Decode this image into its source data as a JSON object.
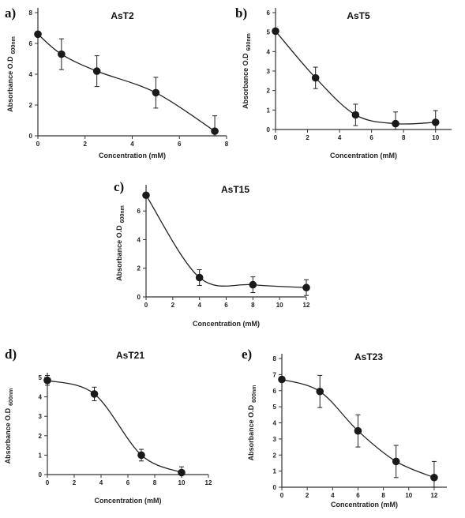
{
  "chart_data": [
    {
      "type": "line",
      "panel_label": "a)",
      "title": "AsT2",
      "xlabel": "Concentration (mM)",
      "ylabel": "Absorbance O.D",
      "ylabel_sub": "600nm",
      "xlim": [
        0,
        8
      ],
      "ylim": [
        0,
        8
      ],
      "xticks": [
        0,
        2,
        4,
        6,
        8
      ],
      "yticks": [
        0,
        2,
        4,
        6,
        8
      ],
      "grid": false,
      "series": [
        {
          "x": [
            0,
            1,
            2.5,
            5,
            7.5
          ],
          "y": [
            6.6,
            5.3,
            4.2,
            2.8,
            0.3
          ],
          "err": [
            0,
            1.0,
            1.0,
            1.0,
            1.0
          ]
        }
      ]
    },
    {
      "type": "line",
      "panel_label": "b)",
      "title": "AsT5",
      "xlabel": "Concentration (mM)",
      "ylabel": "Absorbance O.D",
      "ylabel_sub": "600nm",
      "xlim": [
        0,
        11
      ],
      "ylim": [
        0,
        6
      ],
      "xticks": [
        0,
        2,
        4,
        6,
        8,
        10
      ],
      "yticks": [
        0,
        1,
        2,
        3,
        4,
        5,
        6
      ],
      "grid": false,
      "series": [
        {
          "x": [
            0,
            2.5,
            5,
            7.5,
            10
          ],
          "y": [
            5.05,
            2.65,
            0.75,
            0.3,
            0.37
          ],
          "err": [
            0,
            0.55,
            0.55,
            0.6,
            0.6
          ]
        }
      ]
    },
    {
      "type": "line",
      "panel_label": "c)",
      "title": "AsT15",
      "xlabel": "Concentration (mM)",
      "ylabel": "Absorbance O.D",
      "ylabel_sub": "600nm",
      "xlim": [
        0,
        12
      ],
      "ylim": [
        0,
        7.5
      ],
      "xticks": [
        0,
        2,
        4,
        6,
        8,
        10,
        12
      ],
      "yticks": [
        0,
        2,
        4,
        6
      ],
      "grid": false,
      "series": [
        {
          "x": [
            0,
            4,
            8,
            12
          ],
          "y": [
            7.1,
            1.35,
            0.85,
            0.65
          ],
          "err": [
            0,
            0.55,
            0.55,
            0.55
          ]
        }
      ]
    },
    {
      "type": "line",
      "panel_label": "d)",
      "title": "AsT21",
      "xlabel": "Concentration (mM)",
      "ylabel": "Absorbance O.D",
      "ylabel_sub": "600nm",
      "xlim": [
        0,
        12
      ],
      "ylim": [
        0,
        5
      ],
      "xticks": [
        0,
        2,
        4,
        6,
        8,
        10,
        12
      ],
      "yticks": [
        0,
        1,
        2,
        3,
        4,
        5
      ],
      "grid": false,
      "series": [
        {
          "x": [
            0,
            3.5,
            7,
            10
          ],
          "y": [
            4.85,
            4.15,
            1.0,
            0.1
          ],
          "err": [
            0.25,
            0.35,
            0.3,
            0.3
          ]
        }
      ]
    },
    {
      "type": "line",
      "panel_label": "e)",
      "title": "AsT23",
      "xlabel": "Concentration (mM)",
      "ylabel": "Absorbance O.D",
      "ylabel_sub": "600nm",
      "xlim": [
        0,
        13
      ],
      "ylim": [
        0,
        8
      ],
      "xticks": [
        0,
        2,
        4,
        6,
        8,
        10,
        12
      ],
      "yticks": [
        0,
        1,
        2,
        3,
        4,
        5,
        6,
        7,
        8
      ],
      "grid": false,
      "series": [
        {
          "x": [
            0,
            3,
            6,
            9,
            12
          ],
          "y": [
            6.7,
            5.95,
            3.5,
            1.6,
            0.6
          ],
          "err": [
            0,
            1.0,
            1.0,
            1.0,
            1.0
          ]
        }
      ]
    }
  ]
}
